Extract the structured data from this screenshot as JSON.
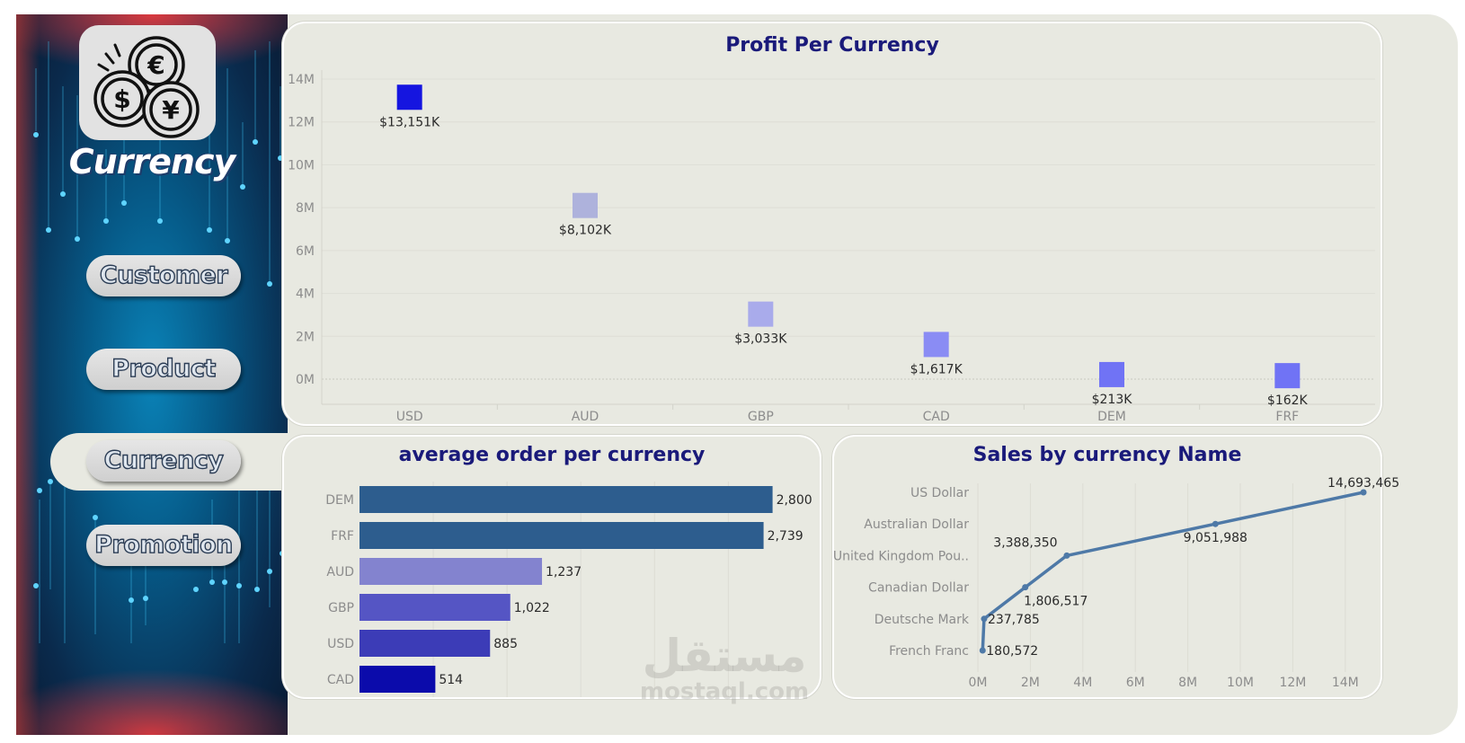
{
  "sidebar": {
    "title": "Currency",
    "nav": [
      {
        "label": "Customer"
      },
      {
        "label": "Product"
      },
      {
        "label": "Currency"
      },
      {
        "label": "Promotion"
      }
    ],
    "active_index": 2
  },
  "colors": {
    "title": "#1a1a7a",
    "bar_dark_blue": "#2d5d8e",
    "line": "#4e79a7"
  },
  "watermark": {
    "arabic": "مستقل",
    "latin": "mostaql.com"
  },
  "chart_data": [
    {
      "id": "profit",
      "type": "scatter",
      "title": "Profit Per Currency",
      "categories": [
        "USD",
        "AUD",
        "GBP",
        "CAD",
        "DEM",
        "FRF"
      ],
      "values": [
        13151,
        8102,
        3033,
        1617,
        213,
        162
      ],
      "value_unit": "thousands",
      "labels": [
        "$13,151K",
        "$8,102K",
        "$3,033K",
        "$1,617K",
        "$213K",
        "$162K"
      ],
      "colors": [
        "#1515e0",
        "#aeb2dc",
        "#a9abeb",
        "#8a8cf4",
        "#7073f5",
        "#7073f5"
      ],
      "yticks": [
        "0M",
        "2M",
        "4M",
        "6M",
        "8M",
        "10M",
        "12M",
        "14M"
      ],
      "ylim": [
        0,
        14000
      ]
    },
    {
      "id": "avg_order",
      "type": "bar",
      "orientation": "horizontal",
      "title": "average order per currency",
      "categories": [
        "DEM",
        "FRF",
        "AUD",
        "GBP",
        "USD",
        "CAD"
      ],
      "values": [
        2800,
        2739,
        1237,
        1022,
        885,
        514
      ],
      "labels": [
        "2,800",
        "2,739",
        "1,237",
        "1,022",
        "885",
        "514"
      ],
      "colors": [
        "#2d5d8e",
        "#2d5d8e",
        "#8383cf",
        "#5555c4",
        "#3c3cb7",
        "#0b0bab"
      ],
      "xlim": [
        0,
        2900
      ]
    },
    {
      "id": "sales",
      "type": "line",
      "title": "Sales by currency Name",
      "categories": [
        "US Dollar",
        "Australian Dollar",
        "United Kingdom Pou..",
        "Canadian Dollar",
        "Deutsche Mark",
        "French Franc"
      ],
      "values": [
        14693465,
        9051988,
        3388350,
        1806517,
        237785,
        180572
      ],
      "labels": [
        "14,693,465",
        "9,051,988",
        "3,388,350",
        "1,806,517",
        "237,785",
        "180,572"
      ],
      "xticks": [
        "0M",
        "2M",
        "4M",
        "6M",
        "8M",
        "10M",
        "12M",
        "14M"
      ],
      "xlim": [
        0,
        15000000
      ]
    }
  ]
}
